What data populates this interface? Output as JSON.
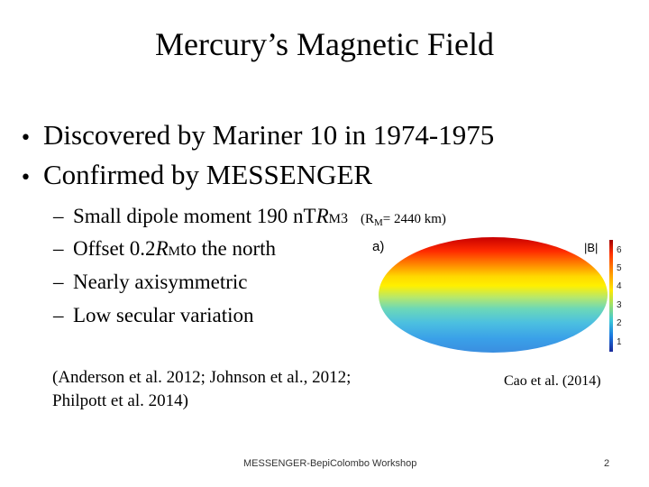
{
  "slide": {
    "title": "Mercury’s Magnetic Field",
    "bullets": [
      {
        "marker": "•",
        "text": "Discovered by Mariner 10 in 1974-1975"
      },
      {
        "marker": "•",
        "text": "Confirmed by MESSENGER"
      }
    ],
    "sub_bullets": {
      "dash": "–",
      "item1": {
        "pre": "Small dipole moment 190 n",
        "t": "T ",
        "r": "R",
        "sub": "M",
        "sup": "3",
        "note_open": "(R",
        "note_sub": "M",
        "note_rest": "= 2440 km)"
      },
      "item2": {
        "pre": "Offset 0.2 ",
        "r": "R",
        "sub": "M",
        "post": " to the north"
      },
      "item3": {
        "text": "Nearly axisymmetric"
      },
      "item4": {
        "text": "Low secular variation"
      }
    },
    "references": {
      "line1": "(Anderson et al. 2012; Johnson et al., 2012;",
      "line2": "Philpott et al. 2014)",
      "figure_credit": "Cao et al. (2014)"
    },
    "figure": {
      "panel_label": "a)",
      "colorbar_title": "|B|",
      "colorbar_ticks": [
        "6",
        "5",
        "4",
        "3",
        "2",
        "1"
      ],
      "colors": {
        "high": "#c80000",
        "mid": "#ffe800",
        "low": "#3aa8e8"
      }
    },
    "footer": {
      "workshop": "MESSENGER-BepiColombo Workshop",
      "page_number": "2"
    }
  }
}
